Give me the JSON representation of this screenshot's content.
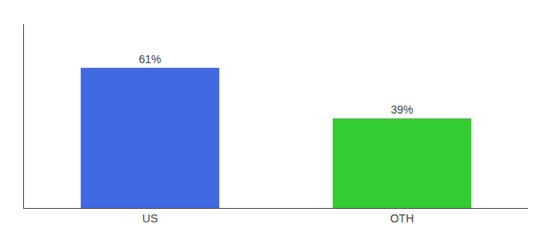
{
  "chart_data": {
    "type": "bar",
    "categories": [
      "US",
      "OTH"
    ],
    "values": [
      61,
      39
    ],
    "value_labels": [
      "61%",
      "39%"
    ],
    "colors": [
      "#4169e1",
      "#33cc33"
    ],
    "ylim": [
      0,
      80
    ],
    "grid": false,
    "data_labels": true,
    "tick_labels": "x"
  }
}
